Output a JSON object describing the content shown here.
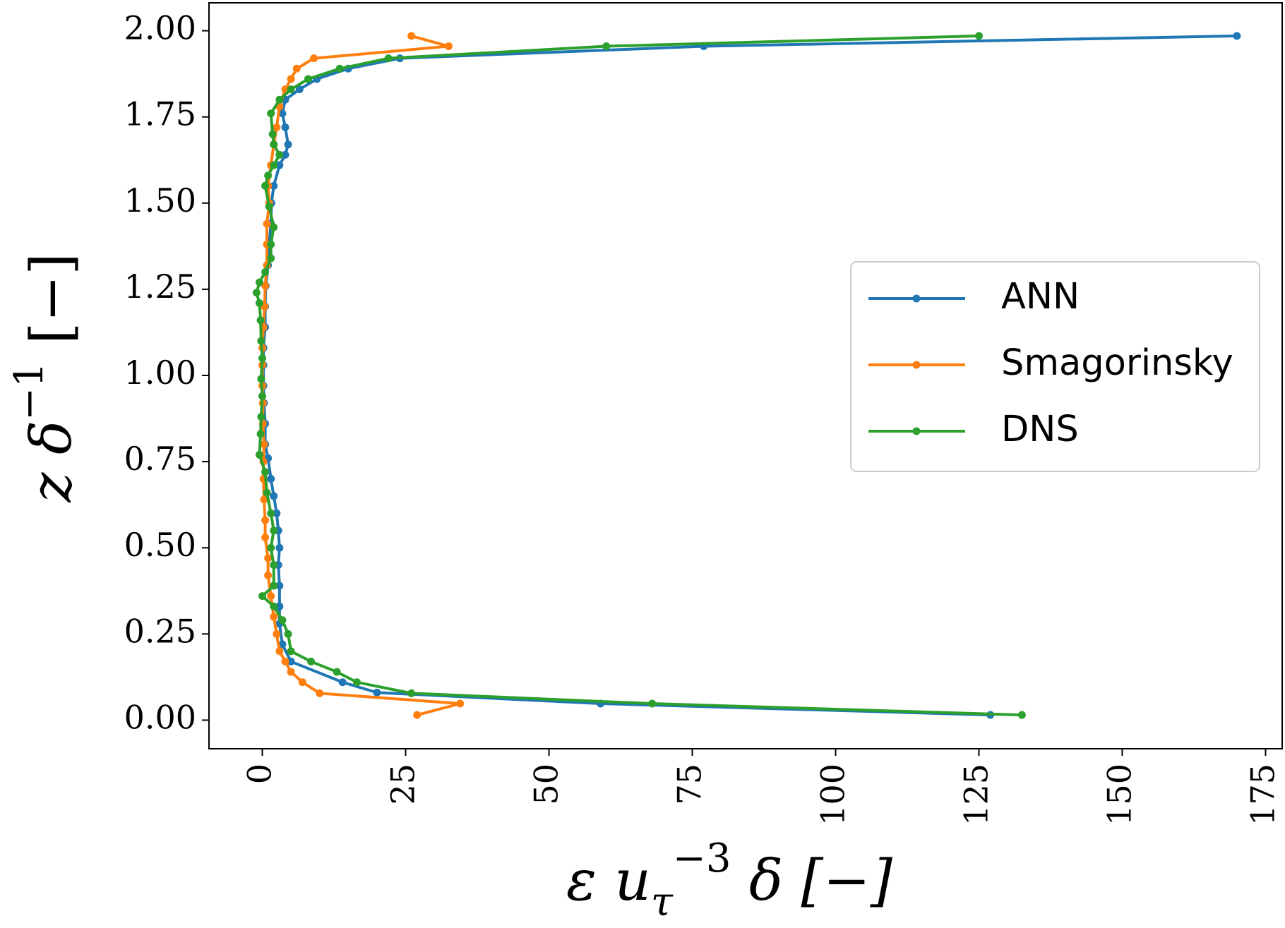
{
  "chart_data": {
    "type": "line",
    "xlabel": [
      "ε u",
      "τ",
      "−3",
      " δ [−]"
    ],
    "ylabel": [
      "z δ",
      "−1",
      " [−]"
    ],
    "xlim": [
      -9.3,
      177.9
    ],
    "ylim": [
      -0.083,
      2.081
    ],
    "xticks": [
      0,
      25,
      50,
      75,
      100,
      125,
      150,
      175
    ],
    "yticks": [
      {
        "value": 0,
        "label": "0.00"
      },
      {
        "value": 0.25,
        "label": "0.25"
      },
      {
        "value": 0.5,
        "label": "0.50"
      },
      {
        "value": 0.75,
        "label": "0.75"
      },
      {
        "value": 1,
        "label": "1.00"
      },
      {
        "value": 1.25,
        "label": "1.25"
      },
      {
        "value": 1.5,
        "label": "1.50"
      },
      {
        "value": 1.75,
        "label": "1.75"
      },
      {
        "value": 2,
        "label": "2.00"
      }
    ],
    "legend": "center right",
    "series": [
      {
        "name": "ANN",
        "color": "#1f77b4",
        "x": [
          127,
          59,
          20,
          14,
          5,
          3.5,
          3,
          3,
          3,
          2.8,
          3,
          2.8,
          2.5,
          2,
          1.5,
          1,
          0.5,
          0.5,
          0.3,
          0.2,
          0.2,
          0.2,
          0.5,
          0.5,
          0.6,
          1,
          1.2,
          1.5,
          1.6,
          2,
          3,
          4,
          4.5,
          4,
          3.5,
          4,
          6.5,
          9.5,
          15,
          24,
          77,
          170
        ],
        "y": [
          0.015,
          0.048,
          0.08,
          0.11,
          0.17,
          0.22,
          0.28,
          0.33,
          0.39,
          0.45,
          0.5,
          0.55,
          0.6,
          0.65,
          0.7,
          0.76,
          0.8,
          0.86,
          0.92,
          0.97,
          1.03,
          1.08,
          1.14,
          1.2,
          1.26,
          1.32,
          1.38,
          1.44,
          1.5,
          1.55,
          1.61,
          1.64,
          1.67,
          1.72,
          1.76,
          1.8,
          1.83,
          1.86,
          1.89,
          1.92,
          1.955,
          1.985
        ]
      },
      {
        "name": "Smagorinsky",
        "color": "#ff7f0e",
        "x": [
          27,
          34.5,
          10,
          7,
          5,
          4,
          3,
          2.5,
          2,
          1.5,
          1,
          1,
          0.5,
          0.5,
          0.3,
          0.2,
          0.2,
          0.3,
          0.1,
          0.1,
          0,
          0,
          0,
          0.2,
          0.4,
          0.5,
          0.8,
          0.8,
          0.8,
          1.2,
          1,
          1.5,
          2,
          2.5,
          3,
          4,
          5,
          6,
          9,
          32.5,
          26
        ],
        "y": [
          0.015,
          0.048,
          0.078,
          0.11,
          0.14,
          0.17,
          0.2,
          0.25,
          0.3,
          0.36,
          0.42,
          0.47,
          0.53,
          0.58,
          0.64,
          0.7,
          0.75,
          0.8,
          0.86,
          0.92,
          0.97,
          1.03,
          1.08,
          1.14,
          1.2,
          1.26,
          1.32,
          1.38,
          1.44,
          1.5,
          1.55,
          1.61,
          1.67,
          1.72,
          1.78,
          1.83,
          1.86,
          1.89,
          1.92,
          1.955,
          1.985
        ]
      },
      {
        "name": "DNS",
        "color": "#2ca02c",
        "x": [
          132.5,
          68,
          26,
          16.5,
          13,
          8.5,
          5,
          4.5,
          3.5,
          2,
          0,
          2,
          2,
          1.5,
          2,
          1.5,
          0.8,
          0.5,
          -0.5,
          -0.3,
          -0.2,
          0,
          -0.2,
          0,
          -0.2,
          -0.3,
          -0.5,
          -1,
          -0.5,
          0.5,
          1.5,
          1.5,
          2,
          1.2,
          0.5,
          1,
          2,
          3,
          2,
          1.8,
          1.5,
          3,
          5,
          8,
          13.5,
          22,
          60,
          125
        ],
        "y": [
          0.015,
          0.048,
          0.078,
          0.11,
          0.14,
          0.17,
          0.2,
          0.25,
          0.29,
          0.33,
          0.36,
          0.39,
          0.45,
          0.5,
          0.55,
          0.6,
          0.66,
          0.72,
          0.77,
          0.83,
          0.88,
          0.94,
          0.99,
          1.05,
          1.1,
          1.16,
          1.21,
          1.24,
          1.27,
          1.3,
          1.34,
          1.38,
          1.43,
          1.49,
          1.55,
          1.58,
          1.61,
          1.64,
          1.67,
          1.7,
          1.76,
          1.8,
          1.83,
          1.86,
          1.89,
          1.92,
          1.955,
          1.985
        ]
      }
    ]
  }
}
